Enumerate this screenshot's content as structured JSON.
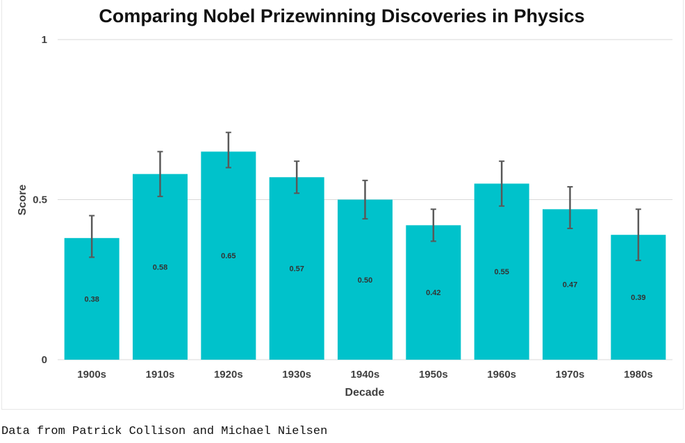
{
  "chart_data": {
    "type": "bar",
    "title": "Comparing Nobel Prizewinning Discoveries in Physics",
    "xlabel": "Decade",
    "ylabel": "Score",
    "ylim": [
      0,
      1
    ],
    "yticks": [
      0,
      0.5,
      1
    ],
    "ytick_labels": [
      "0",
      "0.5",
      "1"
    ],
    "categories": [
      "1900s",
      "1910s",
      "1920s",
      "1930s",
      "1940s",
      "1950s",
      "1960s",
      "1970s",
      "1980s"
    ],
    "values": [
      0.38,
      0.58,
      0.65,
      0.57,
      0.5,
      0.42,
      0.55,
      0.47,
      0.39
    ],
    "value_labels": [
      "0.38",
      "0.58",
      "0.65",
      "0.57",
      "0.50",
      "0.42",
      "0.55",
      "0.47",
      "0.39"
    ],
    "error_low": [
      0.32,
      0.51,
      0.6,
      0.52,
      0.44,
      0.37,
      0.48,
      0.41,
      0.31
    ],
    "error_high": [
      0.45,
      0.65,
      0.71,
      0.62,
      0.56,
      0.47,
      0.62,
      0.54,
      0.47
    ],
    "grid": true,
    "legend": "none",
    "colors": {
      "bar": "#00C2CB",
      "error_bar": "#595959",
      "grid": "#d9d9d9"
    }
  },
  "caption": "Data from Patrick Collison and Michael Nielsen"
}
